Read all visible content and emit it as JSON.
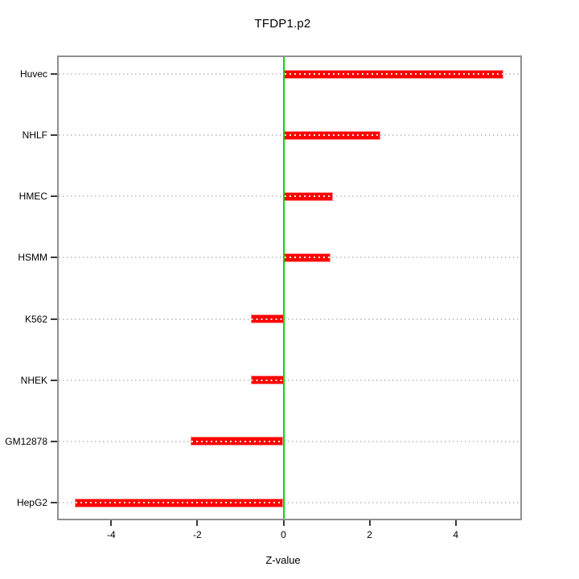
{
  "chart_data": {
    "type": "bar",
    "orientation": "horizontal",
    "title": "TFDP1.p2",
    "xlabel": "Z-value",
    "ylabel": "",
    "categories": [
      "Huvec",
      "NHLF",
      "HMEC",
      "HSMM",
      "K562",
      "NHEK",
      "GM12878",
      "HepG2"
    ],
    "values": [
      5.1,
      2.25,
      1.15,
      1.1,
      -0.75,
      -0.75,
      -2.15,
      -4.85
    ],
    "x_ticks": [
      -4,
      -2,
      0,
      2,
      4
    ],
    "x_tick_labels": [
      "-4",
      "-2",
      "0",
      "2",
      "4"
    ],
    "xlim": [
      -5.22,
      5.5
    ],
    "reference_line_x": 0,
    "grid": "dotted horizontal line per category",
    "legend": "none",
    "bar_color": "#ff0000",
    "bar_edge_color": "#ff8f8f",
    "reference_line_color": "#00dd00",
    "grid_color": "#c9c9c9",
    "frame_color": "#8f8f8f"
  }
}
